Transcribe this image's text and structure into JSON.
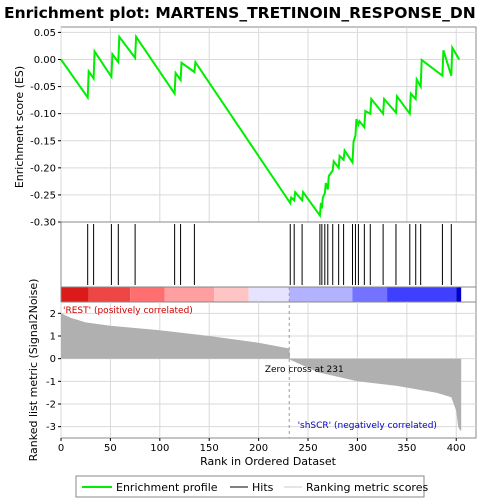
{
  "chart_data": {
    "type": "line",
    "title": "Enrichment plot: MARTENS_TRETINOIN_RESPONSE_DN",
    "xlabel": "Rank in Ordered Dataset",
    "es_ylabel": "Enrichment score (ES)",
    "metric_ylabel": "Ranked list metric (Signal2Noise)",
    "xlim": [
      0,
      420
    ],
    "x_ticks": [
      "0",
      "50",
      "100",
      "150",
      "200",
      "250",
      "300",
      "350",
      "400"
    ],
    "es_ylim": [
      -0.3,
      0.06
    ],
    "es_ticks": [
      "0.05",
      "0.00",
      "-0.05",
      "-0.10",
      "-0.15",
      "-0.20",
      "-0.25",
      "-0.30"
    ],
    "metric_ylim": [
      -3.5,
      2.5
    ],
    "metric_ticks": [
      "2",
      "1",
      "0",
      "-1",
      "-2",
      "-3"
    ],
    "grid": true,
    "legend_position": "bottom",
    "series": [
      {
        "name": "Enrichment profile",
        "color": "#00ee00",
        "x": [
          0,
          27,
          28,
          33,
          34,
          51,
          52,
          58,
          59,
          75,
          76,
          115,
          116,
          121,
          122,
          135,
          136,
          232,
          233,
          236,
          237,
          244,
          245,
          262,
          263,
          264,
          265,
          267,
          268,
          270,
          271,
          275,
          276,
          281,
          282,
          286,
          287,
          295,
          296,
          298,
          299,
          301,
          302,
          307,
          308,
          313,
          314,
          326,
          327,
          339,
          340,
          353,
          354,
          359,
          360,
          364,
          365,
          386,
          387,
          395,
          396,
          403
        ],
        "y": [
          0.0,
          -0.07,
          -0.022,
          -0.035,
          0.015,
          -0.032,
          0.01,
          -0.005,
          0.042,
          0.003,
          0.042,
          -0.063,
          -0.025,
          -0.038,
          -0.006,
          -0.023,
          -0.005,
          -0.265,
          -0.255,
          -0.26,
          -0.245,
          -0.26,
          -0.245,
          -0.288,
          -0.265,
          -0.275,
          -0.255,
          -0.247,
          -0.228,
          -0.24,
          -0.215,
          -0.205,
          -0.188,
          -0.2,
          -0.178,
          -0.185,
          -0.168,
          -0.19,
          -0.152,
          -0.14,
          -0.11,
          -0.12,
          -0.114,
          -0.125,
          -0.095,
          -0.1,
          -0.073,
          -0.1,
          -0.073,
          -0.098,
          -0.068,
          -0.1,
          -0.063,
          -0.073,
          -0.037,
          -0.05,
          -0.001,
          -0.03,
          0.017,
          -0.03,
          0.022,
          0.0
        ]
      }
    ],
    "hits": [
      27,
      33,
      51,
      58,
      75,
      115,
      121,
      135,
      232,
      236,
      244,
      262,
      264,
      267,
      270,
      275,
      281,
      286,
      295,
      298,
      301,
      307,
      313,
      326,
      339,
      353,
      359,
      364,
      386,
      395
    ],
    "zero_cross_rank": 231,
    "metric_profile": {
      "x": [
        0,
        10,
        25,
        50,
        100,
        150,
        200,
        231,
        232,
        260,
        300,
        340,
        380,
        395,
        400,
        402,
        403,
        405
      ],
      "y": [
        2.0,
        1.8,
        1.6,
        1.45,
        1.25,
        1.0,
        0.7,
        0.45,
        -0.05,
        -0.6,
        -1.0,
        -1.2,
        -1.5,
        -1.7,
        -2.3,
        -3.0,
        -3.1,
        -3.2
      ]
    },
    "metric_color": "#b0b0b0",
    "heatbar_colors": [
      "#dd1a1a",
      "#ee4545",
      "#ff6f6f",
      "#ff9f9f",
      "#ffc5c5",
      "#e6e3ff",
      "#b2b2ff",
      "#7373ff",
      "#3f3fff",
      "#0000cc"
    ]
  },
  "labels": {
    "rest": "'REST' (positively correlated)",
    "scr": "'shSCR' (negatively correlated)",
    "zero_cross": "Zero cross at 231"
  },
  "legend": {
    "enrichment": "Enrichment profile",
    "hits": "Hits",
    "ranking": "Ranking metric scores"
  },
  "colors": {
    "enrichment_line": "#00ee00",
    "hits": "#000000",
    "rest_text": "#cc0000",
    "scr_text": "#0000cc",
    "grid": "#d9d9d9"
  }
}
